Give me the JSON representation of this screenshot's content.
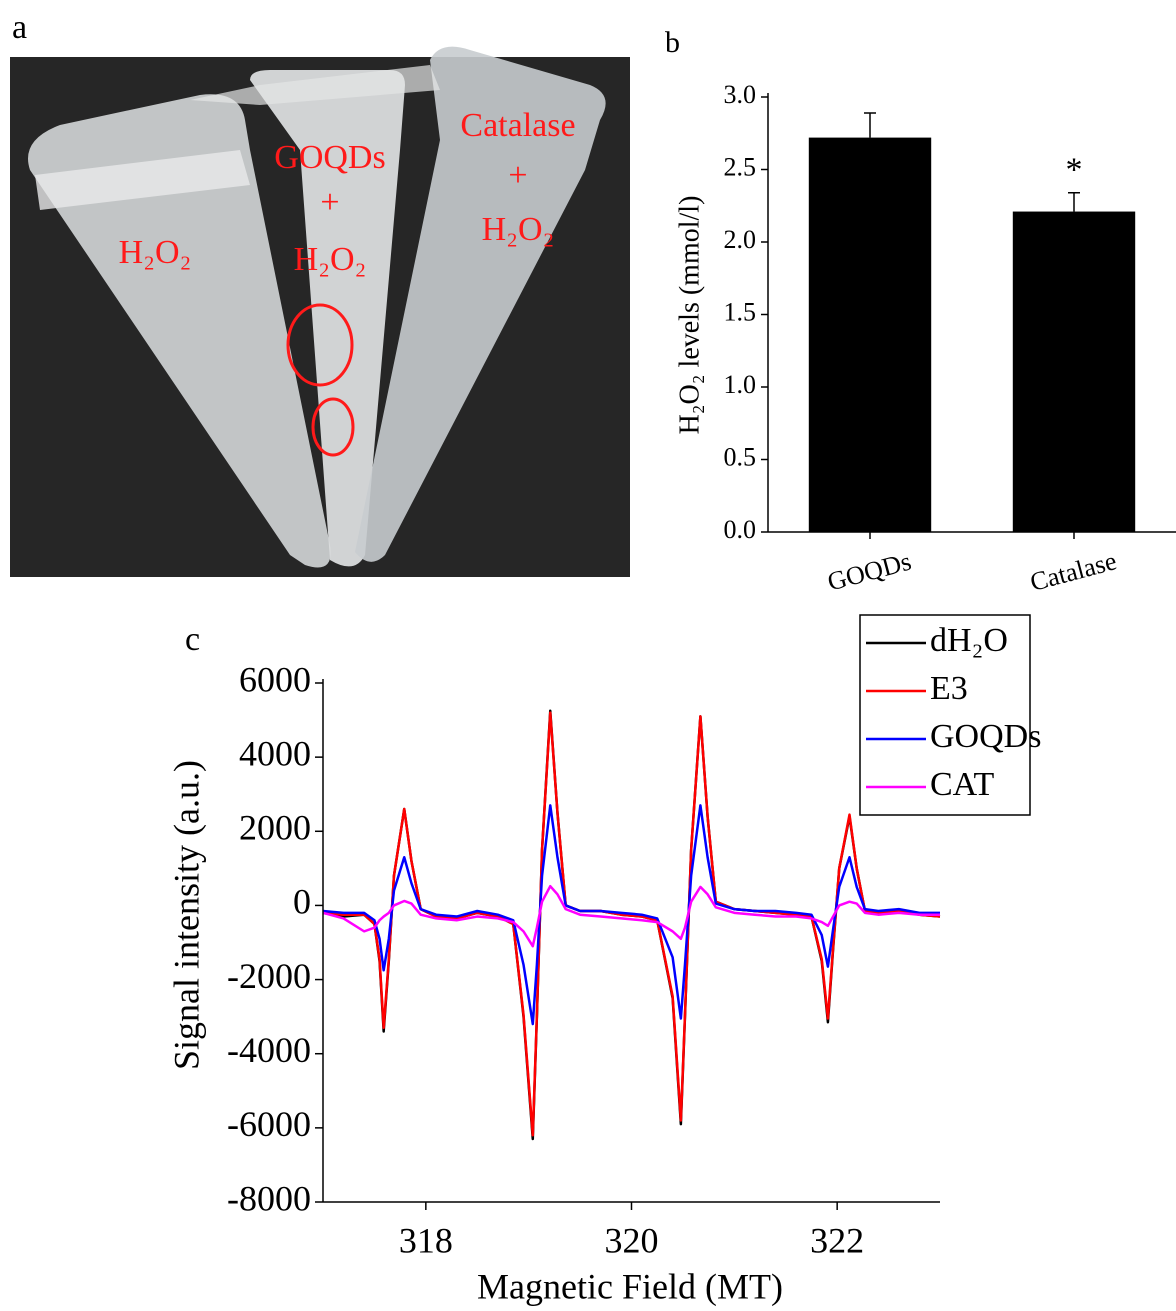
{
  "photo": {
    "panel_label": "a",
    "labels": [
      "H₂O₂",
      "GOQDs",
      "+",
      "H₂O₂",
      "Catalase",
      "+",
      "H₂O₂"
    ]
  },
  "chart_data": [
    {
      "type": "bar",
      "panel_label": "b",
      "y_label": "H₂O₂ levels (mmol/l)",
      "categories": [
        "GOQDs",
        "Catalase"
      ],
      "values": [
        2.72,
        2.21
      ],
      "errors": [
        0.17,
        0.13
      ],
      "color": "#000000",
      "annotations": [
        {
          "category": 1,
          "text": "*"
        }
      ],
      "ylim": [
        0,
        3
      ],
      "yticks": [
        {
          "value": 0,
          "label": "0.0"
        },
        0.5,
        {
          "value": 1,
          "label": "1.0"
        },
        1.5,
        {
          "value": 2,
          "label": "2.0"
        },
        2.5,
        {
          "value": 3,
          "label": "3.0"
        }
      ]
    },
    {
      "type": "line",
      "panel_label": "c",
      "x_label": "Magnetic Field (MT)",
      "y_label": "Signal intensity (a.u.)",
      "legend": "upper right",
      "xlim": [
        317,
        323
      ],
      "xticks": [
        318,
        320,
        322
      ],
      "ylim": [
        -8000,
        6000
      ],
      "yticks": [
        -8000,
        -6000,
        -4000,
        -2000,
        0,
        2000,
        4000,
        6000
      ],
      "x": [
        317.0,
        317.2,
        317.4,
        317.5,
        317.55,
        317.59,
        317.64,
        317.69,
        317.79,
        317.86,
        317.95,
        318.1,
        318.3,
        318.5,
        318.7,
        318.85,
        318.95,
        319.04,
        319.08,
        319.13,
        319.21,
        319.28,
        319.36,
        319.5,
        319.7,
        319.9,
        320.1,
        320.25,
        320.4,
        320.48,
        320.52,
        320.58,
        320.67,
        320.74,
        320.82,
        321.0,
        321.2,
        321.4,
        321.6,
        321.75,
        321.85,
        321.91,
        321.96,
        322.02,
        322.12,
        322.19,
        322.27,
        322.4,
        322.6,
        322.8,
        323.0
      ],
      "series": [
        {
          "name": "dH₂O",
          "color": "#000000",
          "values": [
            -200,
            -300,
            -250,
            -500,
            -1500,
            -3400,
            -1500,
            800,
            2600,
            1200,
            -100,
            -300,
            -350,
            -200,
            -300,
            -500,
            -3000,
            -6300,
            -3000,
            1500,
            5250,
            2500,
            0,
            -150,
            -150,
            -250,
            -300,
            -400,
            -2500,
            -5900,
            -3000,
            1500,
            5100,
            2400,
            100,
            -100,
            -150,
            -200,
            -250,
            -300,
            -1500,
            -3150,
            -1200,
            1000,
            2400,
            1000,
            -150,
            -200,
            -150,
            -250,
            -300
          ]
        },
        {
          "name": "E3",
          "color": "#ff0000",
          "values": [
            -200,
            -250,
            -250,
            -500,
            -1450,
            -3300,
            -1450,
            800,
            2600,
            1200,
            -100,
            -300,
            -350,
            -200,
            -300,
            -500,
            -2950,
            -6200,
            -2950,
            1500,
            5200,
            2500,
            0,
            -150,
            -150,
            -250,
            -300,
            -400,
            -2450,
            -5800,
            -2950,
            1500,
            5100,
            2400,
            100,
            -100,
            -150,
            -200,
            -250,
            -300,
            -1450,
            -3050,
            -1150,
            1000,
            2450,
            1000,
            -150,
            -200,
            -150,
            -250,
            -300
          ]
        },
        {
          "name": "GOQDs",
          "color": "#0000ff",
          "values": [
            -150,
            -200,
            -200,
            -400,
            -900,
            -1750,
            -900,
            400,
            1300,
            600,
            -100,
            -250,
            -300,
            -150,
            -250,
            -400,
            -1600,
            -3200,
            -1600,
            800,
            2700,
            1300,
            0,
            -150,
            -150,
            -200,
            -250,
            -350,
            -1400,
            -3050,
            -1600,
            800,
            2700,
            1300,
            50,
            -100,
            -150,
            -150,
            -200,
            -250,
            -800,
            -1650,
            -650,
            500,
            1300,
            500,
            -100,
            -150,
            -100,
            -200,
            -200
          ]
        },
        {
          "name": "CAT",
          "color": "#ff00ff",
          "values": [
            -200,
            -350,
            -700,
            -600,
            -400,
            -300,
            -200,
            0,
            120,
            50,
            -250,
            -350,
            -400,
            -300,
            -350,
            -450,
            -700,
            -1100,
            -600,
            100,
            520,
            300,
            -100,
            -250,
            -300,
            -350,
            -400,
            -450,
            -700,
            -900,
            -600,
            100,
            500,
            300,
            -50,
            -200,
            -250,
            -300,
            -300,
            -350,
            -450,
            -550,
            -300,
            0,
            100,
            50,
            -200,
            -250,
            -200,
            -250,
            -250
          ]
        }
      ]
    }
  ]
}
